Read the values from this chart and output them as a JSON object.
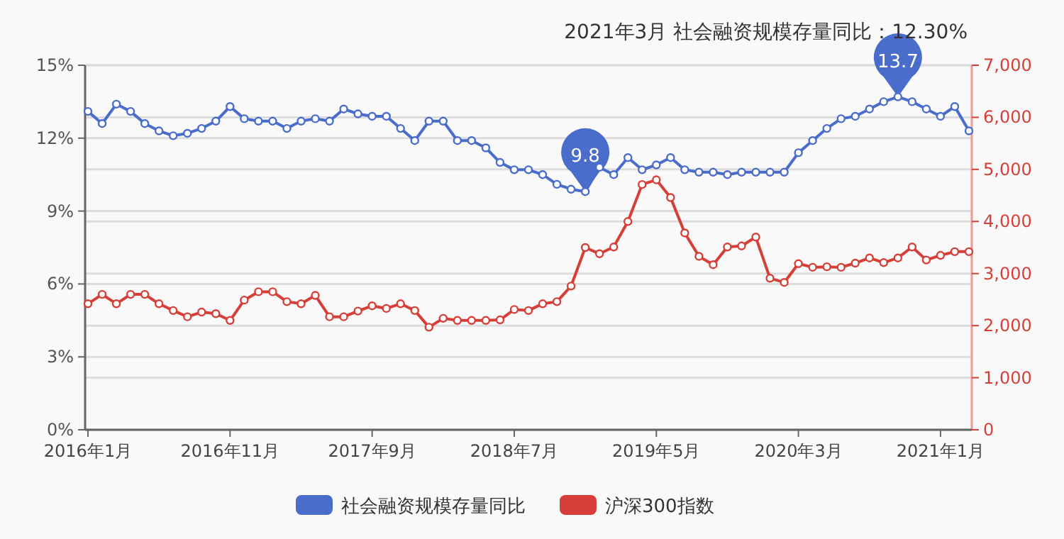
{
  "chart_data": {
    "type": "line",
    "title": "2021年3月    社会融资规模存量同比：12.30%",
    "categories": [
      "2016年1月",
      null,
      null,
      null,
      null,
      null,
      null,
      null,
      null,
      null,
      "2016年11月",
      null,
      null,
      null,
      null,
      null,
      null,
      null,
      null,
      null,
      "2017年9月",
      null,
      null,
      null,
      null,
      null,
      null,
      null,
      null,
      null,
      "2018年7月",
      null,
      null,
      null,
      null,
      null,
      null,
      null,
      null,
      null,
      "2019年5月",
      null,
      null,
      null,
      null,
      null,
      null,
      null,
      null,
      null,
      "2020年3月",
      null,
      null,
      null,
      null,
      null,
      null,
      null,
      null,
      null,
      "2021年1月",
      null,
      null
    ],
    "series": [
      {
        "name": "社会融资规模存量同比",
        "color": "#4a6ccb",
        "values": [
          13.1,
          12.6,
          13.4,
          13.1,
          12.6,
          12.3,
          12.1,
          12.2,
          12.4,
          12.7,
          13.3,
          12.8,
          12.7,
          12.7,
          12.4,
          12.7,
          12.8,
          12.7,
          13.2,
          13.0,
          12.9,
          12.9,
          12.4,
          11.9,
          12.7,
          12.7,
          11.9,
          11.9,
          11.6,
          11.0,
          10.7,
          10.7,
          10.5,
          10.1,
          9.9,
          9.8,
          10.8,
          10.5,
          11.2,
          10.7,
          10.9,
          11.2,
          10.7,
          10.6,
          10.6,
          10.5,
          10.6,
          10.6,
          10.6,
          10.6,
          11.4,
          11.9,
          12.4,
          12.8,
          12.9,
          13.2,
          13.5,
          13.7,
          13.5,
          13.2,
          12.9,
          13.3,
          12.3
        ]
      },
      {
        "name": "沪深300指数",
        "color": "#d63f38",
        "axis": "y2",
        "values": [
          2420,
          2600,
          2420,
          2600,
          2600,
          2420,
          2290,
          2170,
          2260,
          2230,
          2100,
          2490,
          2650,
          2650,
          2460,
          2420,
          2580,
          2170,
          2170,
          2280,
          2380,
          2330,
          2420,
          2290,
          1970,
          2140,
          2100,
          2100,
          2100,
          2110,
          2310,
          2290,
          2420,
          2460,
          2760,
          3500,
          3380,
          3510,
          4000,
          4710,
          4800,
          4460,
          3780,
          3330,
          3170,
          3510,
          3530,
          3700,
          2910,
          2830,
          3190,
          3120,
          3130,
          3120,
          3200,
          3300,
          3210,
          3300,
          3510,
          3260,
          3350,
          3420,
          3420
        ]
      }
    ],
    "ylim": [
      0,
      15
    ],
    "yticks": [
      {
        "value": 0,
        "label": "0%"
      },
      {
        "value": 3,
        "label": "3%"
      },
      {
        "value": 6,
        "label": "6%"
      },
      {
        "value": 9,
        "label": "9%"
      },
      {
        "value": 12,
        "label": "12%"
      },
      {
        "value": 15,
        "label": "15%"
      }
    ],
    "y2lim": [
      0,
      7000
    ],
    "y2ticks": [
      0,
      {
        "value": 1000,
        "label": "1,000"
      },
      {
        "value": 2000,
        "label": "2,000"
      },
      {
        "value": 3000,
        "label": "3,000"
      },
      {
        "value": 4000,
        "label": "4,000"
      },
      {
        "value": 5000,
        "label": "5,000"
      },
      {
        "value": 6000,
        "label": "6,000"
      },
      {
        "value": 7000,
        "label": "7,000"
      }
    ],
    "annotations": [
      {
        "text": "9.8",
        "y": 9.8
      },
      {
        "text": "13.7",
        "y": 13.7
      }
    ],
    "grid": "y",
    "legend": "bottom",
    "marker": "circle",
    "line_style": "solid"
  }
}
